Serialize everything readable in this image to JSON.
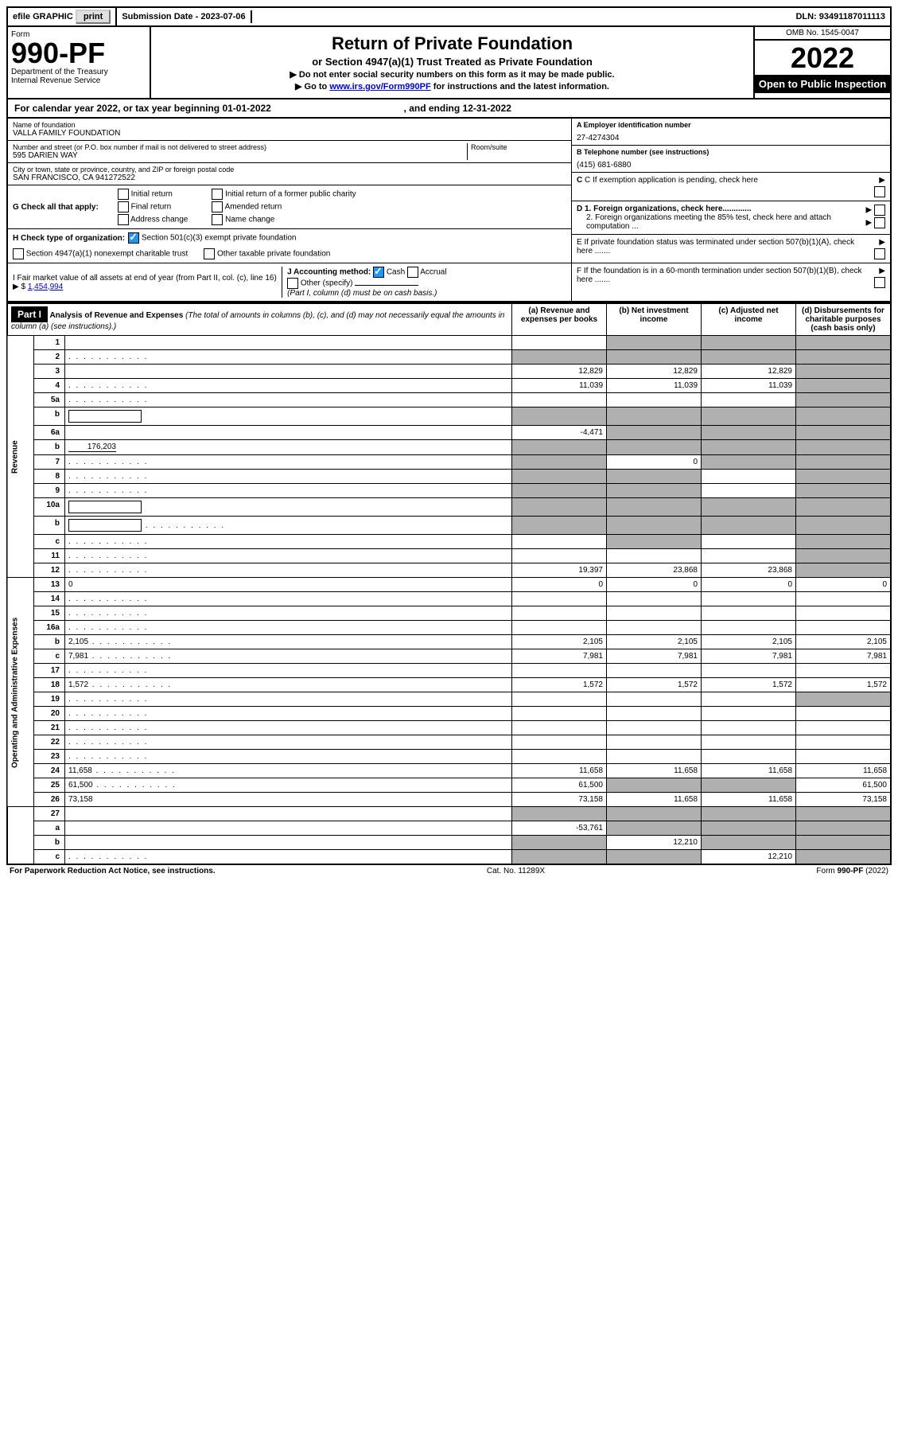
{
  "topbar": {
    "efile": "efile GRAPHIC",
    "print": "print",
    "submission_label": "Submission Date - 2023-07-06",
    "dln_label": "DLN: 93491187011113"
  },
  "header": {
    "form_word": "Form",
    "form_num": "990-PF",
    "dept": "Department of the Treasury",
    "irs": "Internal Revenue Service",
    "title": "Return of Private Foundation",
    "subtitle": "or Section 4947(a)(1) Trust Treated as Private Foundation",
    "instr1": "▶ Do not enter social security numbers on this form as it may be made public.",
    "instr2_pre": "▶ Go to ",
    "instr2_link": "www.irs.gov/Form990PF",
    "instr2_post": " for instructions and the latest information.",
    "omb": "OMB No. 1545-0047",
    "year": "2022",
    "open": "Open to Public Inspection"
  },
  "calendar": {
    "text_pre": "For calendar year 2022, or tax year beginning ",
    "begin": "01-01-2022",
    "mid": " , and ending ",
    "end": "12-31-2022"
  },
  "entity": {
    "name_lbl": "Name of foundation",
    "name": "VALLA FAMILY FOUNDATION",
    "addr_lbl": "Number and street (or P.O. box number if mail is not delivered to street address)",
    "room_lbl": "Room/suite",
    "addr": "595 DARIEN WAY",
    "city_lbl": "City or town, state or province, country, and ZIP or foreign postal code",
    "city": "SAN FRANCISCO, CA  941272522"
  },
  "right": {
    "a_lbl": "A Employer identification number",
    "a_val": "27-4274304",
    "b_lbl": "B Telephone number (see instructions)",
    "b_val": "(415) 681-6880",
    "c_lbl": "C If exemption application is pending, check here",
    "d1": "D 1. Foreign organizations, check here.............",
    "d2": "2. Foreign organizations meeting the 85% test, check here and attach computation ...",
    "e": "E  If private foundation status was terminated under section 507(b)(1)(A), check here .......",
    "f": "F  If the foundation is in a 60-month termination under section 507(b)(1)(B), check here ......."
  },
  "g": {
    "label": "G Check all that apply:",
    "initial": "Initial return",
    "initial_former": "Initial return of a former public charity",
    "final": "Final return",
    "amended": "Amended return",
    "address": "Address change",
    "name": "Name change"
  },
  "h": {
    "label": "H Check type of organization:",
    "opt1": "Section 501(c)(3) exempt private foundation",
    "opt2": "Section 4947(a)(1) nonexempt charitable trust",
    "opt3": "Other taxable private foundation"
  },
  "i": {
    "label": "I Fair market value of all assets at end of year (from Part II, col. (c), line 16) ▶ $",
    "val": "1,454,994"
  },
  "j": {
    "label": "J Accounting method:",
    "cash": "Cash",
    "accrual": "Accrual",
    "other": "Other (specify)",
    "note": "(Part I, column (d) must be on cash basis.)"
  },
  "part1": {
    "label": "Part I",
    "title": "Analysis of Revenue and Expenses",
    "title_note": "(The total of amounts in columns (b), (c), and (d) may not necessarily equal the amounts in column (a) (see instructions).)",
    "col_a": "(a)   Revenue and expenses per books",
    "col_b": "(b)  Net investment income",
    "col_c": "(c)  Adjusted net income",
    "col_d": "(d)  Disbursements for charitable purposes (cash basis only)"
  },
  "sections": {
    "revenue": "Revenue",
    "expenses": "Operating and Administrative Expenses"
  },
  "rows": [
    {
      "n": "1",
      "d": "",
      "a": "",
      "b": "",
      "c": "",
      "ash": false,
      "bsh": true,
      "csh": true,
      "dsh": true
    },
    {
      "n": "2",
      "d": "",
      "dots": true,
      "a": "",
      "b": "",
      "c": "",
      "ash": true,
      "bsh": true,
      "csh": true,
      "dsh": true
    },
    {
      "n": "3",
      "d": "",
      "a": "12,829",
      "b": "12,829",
      "c": "12,829",
      "dsh": true
    },
    {
      "n": "4",
      "d": "",
      "dots": true,
      "a": "11,039",
      "b": "11,039",
      "c": "11,039",
      "dsh": true
    },
    {
      "n": "5a",
      "d": "",
      "dots": true,
      "a": "",
      "b": "",
      "c": "",
      "dsh": true
    },
    {
      "n": "b",
      "d": "",
      "box": true,
      "a": "",
      "b": "",
      "c": "",
      "ash": true,
      "bsh": true,
      "csh": true,
      "dsh": true
    },
    {
      "n": "6a",
      "d": "",
      "a": "-4,471",
      "b": "",
      "c": "",
      "bsh": true,
      "csh": true,
      "dsh": true
    },
    {
      "n": "b",
      "d": "",
      "uval": "176,203",
      "a": "",
      "b": "",
      "c": "",
      "ash": true,
      "bsh": true,
      "csh": true,
      "dsh": true
    },
    {
      "n": "7",
      "d": "",
      "dots": true,
      "a": "",
      "b": "0",
      "c": "",
      "ash": true,
      "csh": true,
      "dsh": true
    },
    {
      "n": "8",
      "d": "",
      "dots": true,
      "a": "",
      "b": "",
      "c": "",
      "ash": true,
      "bsh": true,
      "dsh": true
    },
    {
      "n": "9",
      "d": "",
      "dots": true,
      "a": "",
      "b": "",
      "c": "",
      "ash": true,
      "bsh": true,
      "dsh": true
    },
    {
      "n": "10a",
      "d": "",
      "box": true,
      "a": "",
      "b": "",
      "c": "",
      "ash": true,
      "bsh": true,
      "csh": true,
      "dsh": true
    },
    {
      "n": "b",
      "d": "",
      "dots": true,
      "box": true,
      "a": "",
      "b": "",
      "c": "",
      "ash": true,
      "bsh": true,
      "csh": true,
      "dsh": true
    },
    {
      "n": "c",
      "d": "",
      "dots": true,
      "a": "",
      "b": "",
      "c": "",
      "bsh": true,
      "dsh": true
    },
    {
      "n": "11",
      "d": "",
      "dots": true,
      "a": "",
      "b": "",
      "c": "",
      "dsh": true
    },
    {
      "n": "12",
      "d": "",
      "dots": true,
      "a": "19,397",
      "b": "23,868",
      "c": "23,868",
      "dsh": true
    }
  ],
  "exp_rows": [
    {
      "n": "13",
      "d": "0",
      "a": "0",
      "b": "0",
      "c": "0"
    },
    {
      "n": "14",
      "d": "",
      "dots": true,
      "a": "",
      "b": "",
      "c": ""
    },
    {
      "n": "15",
      "d": "",
      "dots": true,
      "a": "",
      "b": "",
      "c": ""
    },
    {
      "n": "16a",
      "d": "",
      "dots": true,
      "a": "",
      "b": "",
      "c": ""
    },
    {
      "n": "b",
      "d": "2,105",
      "dots": true,
      "a": "2,105",
      "b": "2,105",
      "c": "2,105"
    },
    {
      "n": "c",
      "d": "7,981",
      "dots": true,
      "a": "7,981",
      "b": "7,981",
      "c": "7,981"
    },
    {
      "n": "17",
      "d": "",
      "dots": true,
      "a": "",
      "b": "",
      "c": ""
    },
    {
      "n": "18",
      "d": "1,572",
      "dots": true,
      "a": "1,572",
      "b": "1,572",
      "c": "1,572"
    },
    {
      "n": "19",
      "d": "",
      "dots": true,
      "a": "",
      "b": "",
      "c": "",
      "dsh": true
    },
    {
      "n": "20",
      "d": "",
      "dots": true,
      "a": "",
      "b": "",
      "c": ""
    },
    {
      "n": "21",
      "d": "",
      "dots": true,
      "a": "",
      "b": "",
      "c": ""
    },
    {
      "n": "22",
      "d": "",
      "dots": true,
      "a": "",
      "b": "",
      "c": ""
    },
    {
      "n": "23",
      "d": "",
      "dots": true,
      "a": "",
      "b": "",
      "c": ""
    },
    {
      "n": "24",
      "d": "11,658",
      "dots": true,
      "a": "11,658",
      "b": "11,658",
      "c": "11,658"
    },
    {
      "n": "25",
      "d": "61,500",
      "dots": true,
      "a": "61,500",
      "b": "",
      "c": "",
      "bsh": true,
      "csh": true
    },
    {
      "n": "26",
      "d": "73,158",
      "a": "73,158",
      "b": "11,658",
      "c": "11,658"
    }
  ],
  "final_rows": [
    {
      "n": "27",
      "d": "",
      "a": "",
      "b": "",
      "c": "",
      "ash": true,
      "bsh": true,
      "csh": true,
      "dsh": true
    },
    {
      "n": "a",
      "d": "",
      "a": "-53,761",
      "b": "",
      "c": "",
      "bsh": true,
      "csh": true,
      "dsh": true
    },
    {
      "n": "b",
      "d": "",
      "a": "",
      "b": "12,210",
      "c": "",
      "ash": true,
      "csh": true,
      "dsh": true
    },
    {
      "n": "c",
      "d": "",
      "dots": true,
      "a": "",
      "b": "",
      "c": "12,210",
      "ash": true,
      "bsh": true,
      "dsh": true
    }
  ],
  "footer": {
    "left": "For Paperwork Reduction Act Notice, see instructions.",
    "mid": "Cat. No. 11289X",
    "right": "Form 990-PF (2022)"
  }
}
